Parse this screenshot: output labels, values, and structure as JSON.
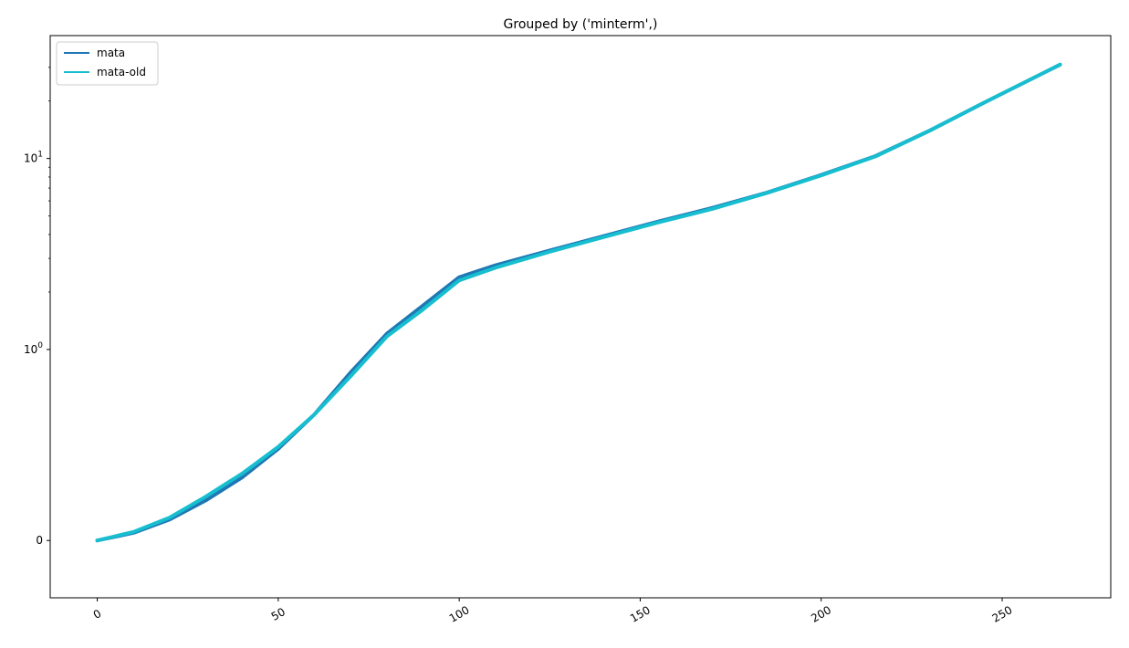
{
  "chart_data": {
    "type": "line",
    "title": "Grouped by ('minterm',)",
    "xlabel": "",
    "ylabel": "",
    "xlim": [
      -13,
      280
    ],
    "ylim": [
      -0.3,
      44
    ],
    "yscale": "symlog",
    "symlog_linthresh": 1,
    "x_ticks": [
      0,
      50,
      100,
      150,
      200,
      250
    ],
    "x_tick_labels": [
      "0",
      "50",
      "100",
      "150",
      "200",
      "250"
    ],
    "x_tick_rotation": 30,
    "y_ticks": [
      {
        "value": 0,
        "base": "0",
        "exp": ""
      },
      {
        "value": 1,
        "base": "10",
        "exp": "0"
      },
      {
        "value": 10,
        "base": "10",
        "exp": "1"
      }
    ],
    "grid": false,
    "legend_position": "upper-left",
    "colors": {
      "mata": "#1f77b4",
      "mata-old": "#17becf"
    },
    "series": [
      {
        "name": "mata",
        "color": "#1f77b4",
        "x": [
          0,
          10,
          20,
          30,
          40,
          50,
          60,
          70,
          80,
          90,
          100,
          110,
          125,
          140,
          155,
          170,
          185,
          200,
          215,
          230,
          245,
          266
        ],
        "values": [
          0,
          0.04,
          0.11,
          0.21,
          0.33,
          0.48,
          0.66,
          0.88,
          1.21,
          1.7,
          2.39,
          2.76,
          3.3,
          3.93,
          4.68,
          5.52,
          6.63,
          8.2,
          10.3,
          14.0,
          19.6,
          31.0
        ]
      },
      {
        "name": "mata-old",
        "color": "#17becf",
        "x": [
          0,
          10,
          20,
          30,
          40,
          50,
          60,
          70,
          80,
          90,
          100,
          110,
          125,
          140,
          155,
          170,
          185,
          200,
          215,
          230,
          245,
          266
        ],
        "values": [
          0,
          0.045,
          0.12,
          0.23,
          0.35,
          0.49,
          0.66,
          0.86,
          1.17,
          1.62,
          2.3,
          2.68,
          3.25,
          3.88,
          4.63,
          5.45,
          6.6,
          8.15,
          10.25,
          14.0,
          19.6,
          31.0
        ]
      }
    ]
  }
}
